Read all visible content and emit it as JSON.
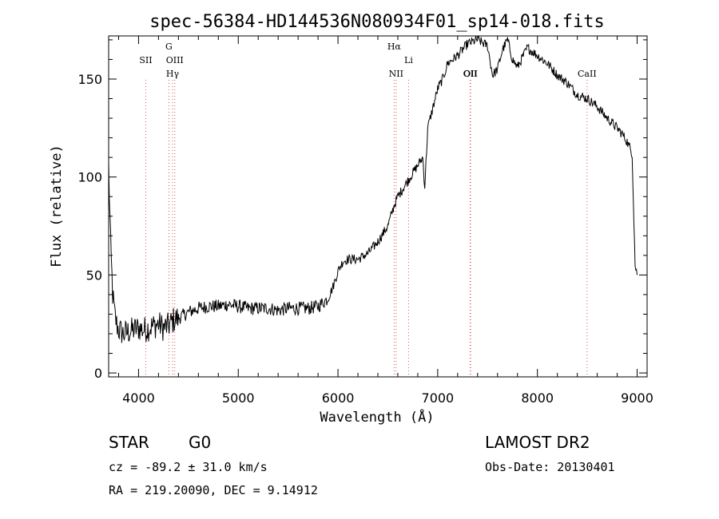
{
  "chart_data": {
    "type": "line",
    "title": "spec-56384-HD144536N080934F01_sp14-018.fits",
    "xlabel": "Wavelength (Å)",
    "ylabel": "Flux (relative)",
    "xlim": [
      3700,
      9100
    ],
    "ylim": [
      -2,
      172
    ],
    "xticks": [
      4000,
      5000,
      6000,
      7000,
      8000,
      9000
    ],
    "yticks": [
      0,
      50,
      100,
      150
    ],
    "grid": false,
    "series": [
      {
        "x": [
          3700,
          3720,
          3740,
          3760,
          3780,
          3800,
          3850,
          3900,
          3950,
          4000,
          4050,
          4100,
          4150,
          4200,
          4250,
          4300,
          4350,
          4400,
          4500,
          4600,
          4700,
          4800,
          4900,
          5000,
          5100,
          5200,
          5300,
          5400,
          5500,
          5600,
          5700,
          5800,
          5850,
          5900,
          5950,
          6000,
          6050,
          6100,
          6150,
          6200,
          6300,
          6400,
          6500,
          6560,
          6600,
          6700,
          6800,
          6850,
          6870,
          6900,
          6950,
          7000,
          7050,
          7100,
          7200,
          7300,
          7400,
          7500,
          7550,
          7600,
          7650,
          7700,
          7750,
          7800,
          7900,
          8000,
          8100,
          8200,
          8300,
          8400,
          8500,
          8600,
          8700,
          8800,
          8850,
          8900,
          8950,
          8980,
          9000
        ],
        "y": [
          105,
          65,
          40,
          30,
          25,
          22,
          20,
          21,
          22,
          23,
          22,
          23,
          24,
          25,
          23,
          24,
          27,
          28,
          31,
          33,
          34,
          34,
          35,
          34,
          33,
          33,
          33,
          32,
          33,
          33,
          33,
          34,
          36,
          38,
          44,
          52,
          57,
          58,
          58,
          58,
          61,
          67,
          75,
          85,
          90,
          98,
          106,
          110,
          95,
          125,
          135,
          145,
          150,
          158,
          162,
          168,
          170,
          167,
          152,
          155,
          165,
          170,
          160,
          156,
          166,
          162,
          158,
          152,
          148,
          142,
          140,
          136,
          130,
          125,
          122,
          118,
          112,
          55,
          50
        ]
      }
    ],
    "spectral_lines": [
      {
        "label": "SII",
        "x": 4072
      },
      {
        "label": "G",
        "x": 4304
      },
      {
        "label": "OIII",
        "x": 4363
      },
      {
        "label": "Hγ",
        "x": 4341
      },
      {
        "label": "Hα",
        "x": 6563
      },
      {
        "label": "NII",
        "x": 6583
      },
      {
        "label": "Li",
        "x": 6708
      },
      {
        "label": "OII",
        "x": 7325
      },
      {
        "label": "OII",
        "x": 7330
      },
      {
        "label": "CaII",
        "x": 8498
      }
    ],
    "line_color": "#e05050"
  },
  "info": {
    "class": "STAR",
    "subclass": "G0",
    "survey": "LAMOST DR2",
    "cz": "cz = -89.2 ± 31.0 km/s",
    "obs_date": "Obs-Date: 20130401",
    "radec": "RA = 219.20090, DEC =   9.14912"
  }
}
